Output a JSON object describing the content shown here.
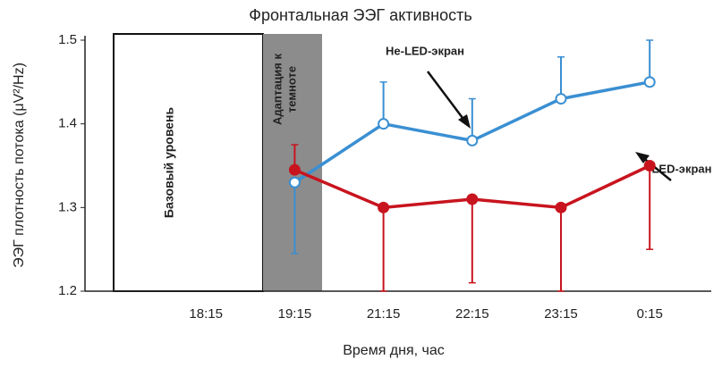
{
  "chart_data": {
    "type": "line",
    "title": "Фронтальная ЭЭГ активность",
    "x_label": "Время дня, час",
    "y_label": "ЭЭГ плотность потока (μV²/Hz)",
    "categories": [
      null,
      "18:15",
      "19:15",
      "21:15",
      "22:15",
      "23:15",
      "0:15"
    ],
    "series": [
      {
        "name": "Не-LED-экран",
        "color": "#3a8fd2",
        "marker": "open",
        "values": [
          null,
          null,
          1.33,
          1.4,
          1.38,
          1.43,
          1.45
        ],
        "errors": [
          null,
          null,
          0.085,
          0.05,
          0.05,
          0.05,
          0.05
        ],
        "error_sides": [
          null,
          null,
          "down",
          "up",
          "up",
          "up",
          "up"
        ]
      },
      {
        "name": "LED-экран",
        "color": "#c8141e",
        "marker": "filled",
        "values": [
          null,
          null,
          1.345,
          1.3,
          1.31,
          1.3,
          1.35
        ],
        "errors": [
          null,
          null,
          0.03,
          0.1,
          0.1,
          0.1,
          0.1
        ],
        "error_sides": [
          null,
          null,
          "up",
          "down",
          "down",
          "down",
          "down"
        ]
      }
    ],
    "ylim": [
      1.2,
      1.5
    ],
    "yticks": [
      1.2,
      1.3,
      1.4,
      1.5
    ],
    "baseline_label": "Базовый уровень",
    "adaptation_label": [
      "Адаптация к",
      "темноте"
    ]
  }
}
